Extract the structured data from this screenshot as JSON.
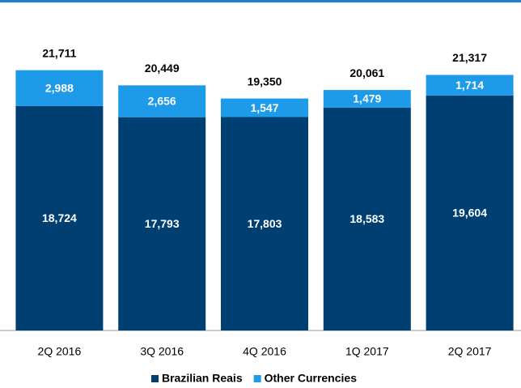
{
  "chart_data": {
    "type": "stacked_bar",
    "categories": [
      "2Q 2016",
      "3Q 2016",
      "4Q 2016",
      "1Q 2017",
      "2Q 2017"
    ],
    "series": [
      {
        "name": "Brazilian Reais",
        "color": "#003f72",
        "values": [
          18724,
          17793,
          17803,
          18583,
          19604
        ],
        "value_labels": [
          "18,724",
          "17,793",
          "17,803",
          "18,583",
          "19,604"
        ]
      },
      {
        "name": "Other Currencies",
        "color": "#1e9be8",
        "values": [
          2988,
          2656,
          1547,
          1479,
          1714
        ],
        "value_labels": [
          "2,988",
          "2,656",
          "1,547",
          "1,479",
          "1,714"
        ]
      }
    ],
    "totals": [
      21711,
      20449,
      19350,
      20061,
      21317
    ],
    "total_labels": [
      "21,711",
      "20,449",
      "19,350",
      "20,061",
      "21,317"
    ],
    "ylim": [
      0,
      25000
    ]
  }
}
